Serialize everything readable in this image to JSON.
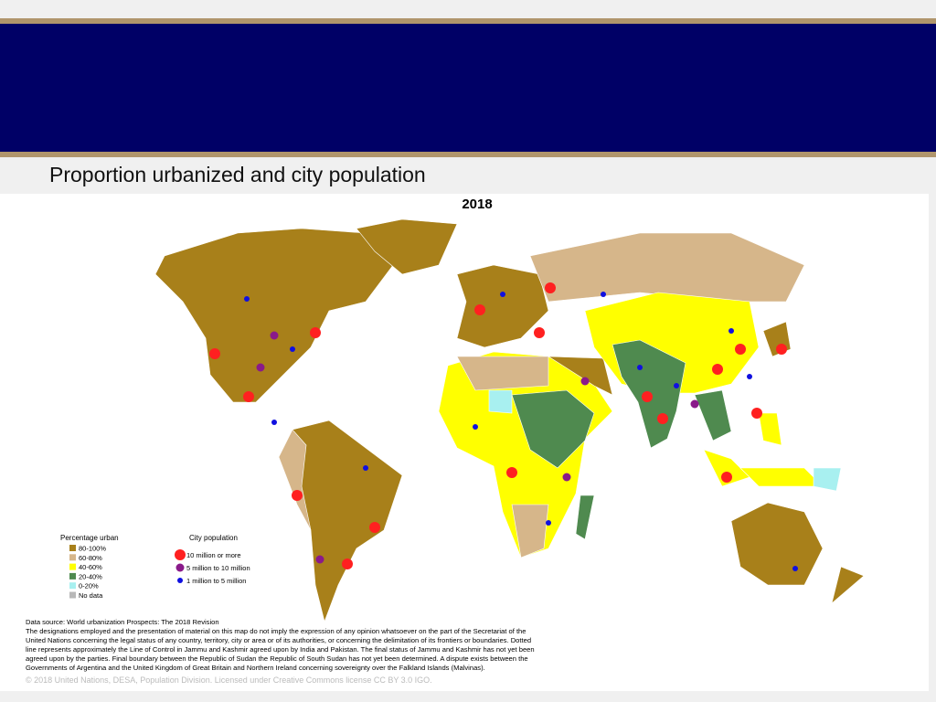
{
  "slide": {
    "title": "Proportion urbanized and city population"
  },
  "map": {
    "title": "2018",
    "legend_urban": {
      "title": "Percentage urban",
      "items": [
        {
          "label": "80-100%",
          "color": "#a8801a"
        },
        {
          "label": "60-80%",
          "color": "#d6b68a"
        },
        {
          "label": "40-60%",
          "color": "#ffff00"
        },
        {
          "label": "20-40%",
          "color": "#4f8a4f"
        },
        {
          "label": "0-20%",
          "color": "#a8f0f0"
        },
        {
          "label": "No data",
          "color": "#b8b8b8"
        }
      ]
    },
    "legend_city": {
      "title": "City population",
      "items": [
        {
          "label": "10 million or more",
          "color": "#ff2020",
          "size": 6
        },
        {
          "label": "5 million to 10 million",
          "color": "#8a1a8a",
          "size": 4.5
        },
        {
          "label": "1 million to 5 million",
          "color": "#1010e0",
          "size": 3
        }
      ]
    }
  },
  "notes": {
    "source": "Data source: World urbanization Prospects: The 2018 Revision",
    "disclaimer": [
      "The designations employed and the presentation of material on this map do not imply the expression of any opinion whatsoever on the part of the Secretariat of the",
      "United Nations concerning the legal status of any country, territory, city or area or of its authorities, or concerning the delimitation of its frontiers or boundaries. Dotted",
      "line represents approximately the Line of Control in Jammu and Kashmir agreed upon by India and Pakistan. The final status of Jammu and Kashmir has not yet been",
      "agreed upon by the parties. Final boundary between the Republic of Sudan the Republic of South Sudan has not yet been determined. A dispute exists between the",
      "Governments of Argentina and the United Kingdom of Great Britain and Northern Ireland concerning sovereignty over the Falkland Islands (Malvinas)."
    ],
    "copyright": "© 2018 United Nations, DESA, Population Division. Licensed under Creative Commons license CC BY 3.0 IGO."
  }
}
